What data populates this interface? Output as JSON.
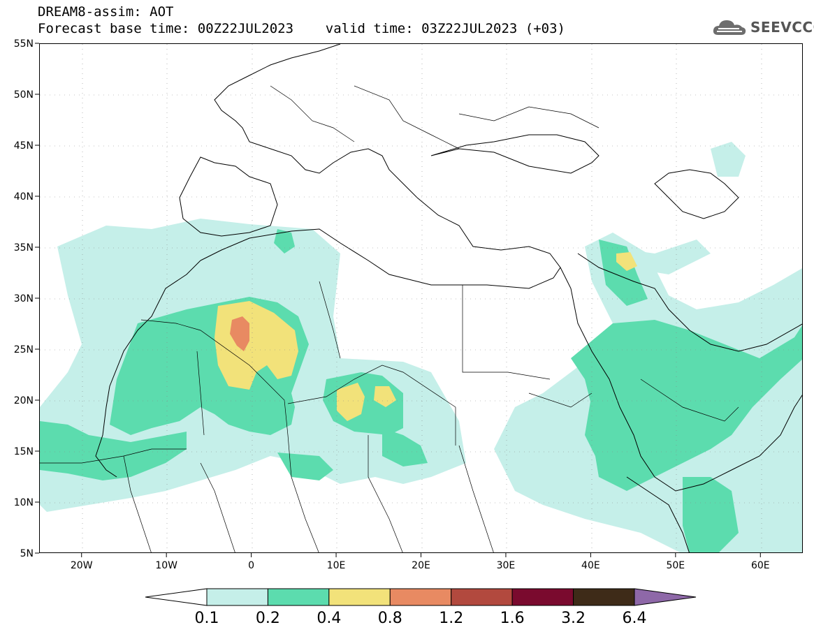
{
  "header": {
    "title_line1": "DREAM8-assim: AOT",
    "title_line2": "Forecast base time: 00Z22JUL2023    valid time: 03Z22JUL2023 (+03)",
    "logo_text": "SEEVCCC"
  },
  "map": {
    "lon_range": [
      -25,
      65
    ],
    "lat_range": [
      5,
      55
    ],
    "lat_labels": [
      "55N",
      "50N",
      "45N",
      "40N",
      "35N",
      "30N",
      "25N",
      "20N",
      "15N",
      "10N",
      "5N"
    ],
    "lon_labels": [
      "20W",
      "10W",
      "0",
      "10E",
      "20E",
      "30E",
      "40E",
      "50E",
      "60E"
    ]
  },
  "colorbar": {
    "labels": [
      "0.1",
      "0.2",
      "0.4",
      "0.8",
      "1.2",
      "1.6",
      "3.2",
      "6.4"
    ],
    "colors": [
      "#ffffff",
      "#c5efe9",
      "#5cdcae",
      "#f2e27a",
      "#e88a62",
      "#b2493e",
      "#7a0a2e",
      "#3e2b18",
      "#8e68a8"
    ]
  }
}
